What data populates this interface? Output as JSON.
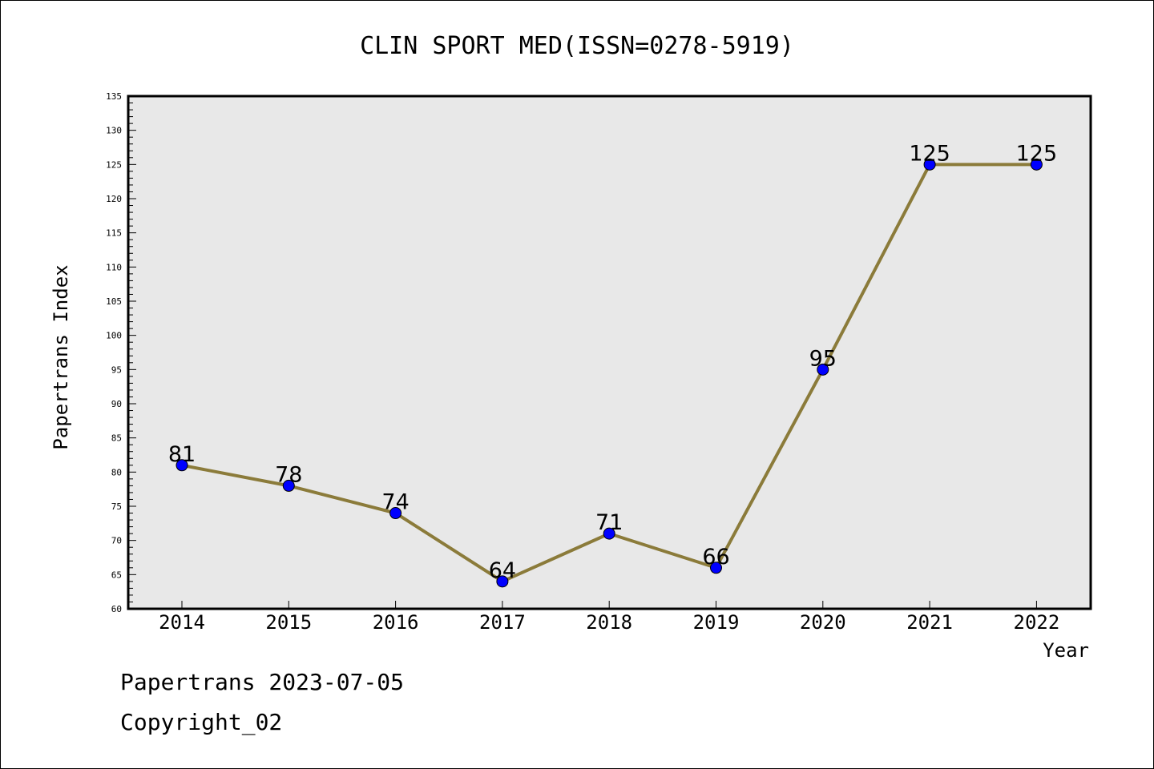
{
  "chart_data": {
    "type": "line",
    "title": "CLIN SPORT MED(ISSN=0278-5919)",
    "xlabel": "Year",
    "ylabel": "Papertrans Index",
    "categories": [
      "2014",
      "2015",
      "2016",
      "2017",
      "2018",
      "2019",
      "2020",
      "2021",
      "2022"
    ],
    "series": [
      {
        "values": [
          81,
          78,
          74,
          64,
          71,
          66,
          95,
          125,
          125
        ]
      }
    ],
    "ylim": [
      60,
      135
    ],
    "ytick_step": 5,
    "yminor_step": 1,
    "grid": false,
    "data_labels": true,
    "line_color": "#8b7b3a",
    "marker_color": "#0000ff",
    "plot_background": "#e8e8e8"
  },
  "footer": {
    "line1": "Papertrans 2023-07-05",
    "line2": "Copyright_02"
  }
}
